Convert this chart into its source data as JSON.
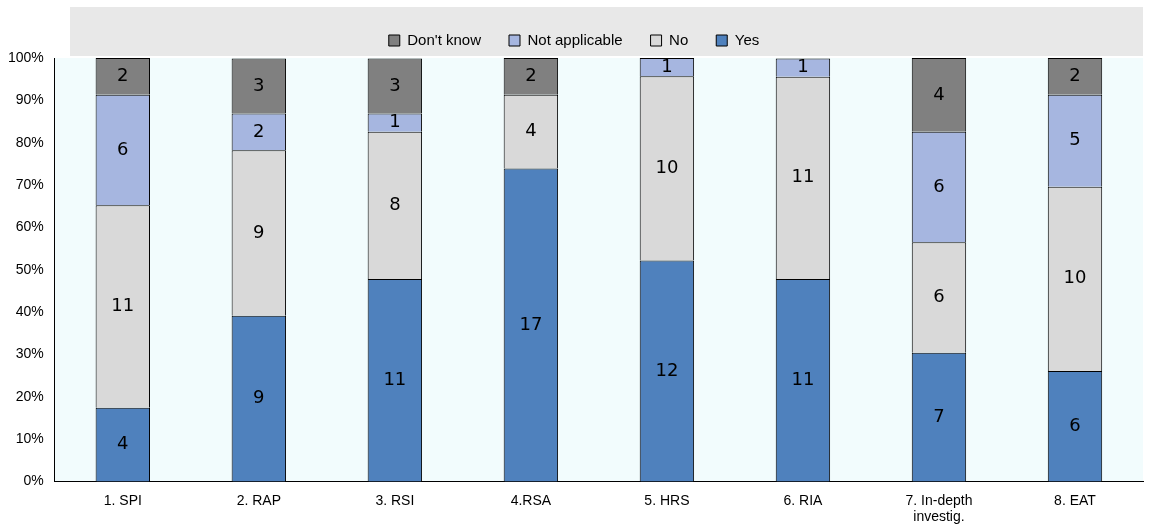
{
  "chart_data": {
    "type": "bar",
    "stacked": true,
    "legend": "top",
    "grid": false,
    "categories": [
      "1. SPI",
      "2. RAP",
      "3. RSI",
      "4.RSA",
      "5. HRS",
      "6. RIA",
      "7. In-depth investig.",
      "8. EAT"
    ],
    "ylim": [
      0,
      100
    ],
    "yticks": [
      {
        "value": 0,
        "label": "0%"
      },
      {
        "value": 10,
        "label": "10%"
      },
      {
        "value": 20,
        "label": "20%"
      },
      {
        "value": 30,
        "label": "30%"
      },
      {
        "value": 40,
        "label": "40%"
      },
      {
        "value": 50,
        "label": "50%"
      },
      {
        "value": 60,
        "label": "60%"
      },
      {
        "value": 70,
        "label": "70%"
      },
      {
        "value": 80,
        "label": "80%"
      },
      {
        "value": 90,
        "label": "90%"
      },
      {
        "value": 100,
        "label": "100%"
      }
    ],
    "series": [
      {
        "name": "Yes",
        "color": "#4f81bd",
        "values": [
          17.4,
          39.1,
          47.8,
          73.9,
          52.2,
          47.8,
          30.4,
          26.1
        ]
      },
      {
        "name": "No",
        "color": "#d9d9d9",
        "values": [
          47.8,
          39.1,
          34.8,
          17.4,
          43.5,
          47.8,
          26.1,
          43.5
        ]
      },
      {
        "name": "Not applicable",
        "color": "#a6b6e0",
        "values": [
          26.1,
          8.7,
          4.3,
          0,
          4.3,
          4.3,
          26.1,
          21.7
        ]
      },
      {
        "name": "Don't know",
        "color": "#808080",
        "values": [
          8.7,
          13.0,
          13.0,
          8.7,
          0,
          0,
          17.4,
          8.7
        ]
      }
    ],
    "annotations": [
      "4",
      "9",
      "11",
      "17",
      "12",
      "11",
      "7",
      "6",
      "11",
      "9",
      "8",
      "4",
      "10",
      "11",
      "6",
      "10",
      "6",
      "2",
      "1",
      "1",
      "1",
      "6",
      "5",
      "2",
      "3",
      "3",
      "2",
      "4",
      "2"
    ]
  }
}
